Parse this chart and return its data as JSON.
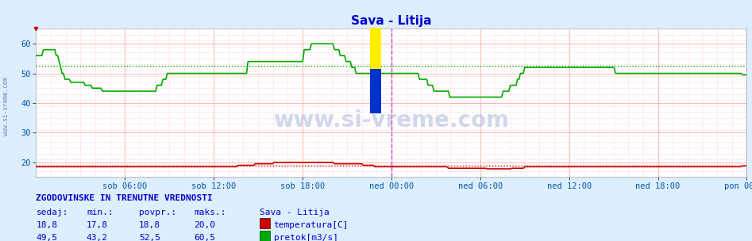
{
  "title": "Sava - Litija",
  "title_color": "#0000cc",
  "bg_color": "#ddeeff",
  "plot_bg_color": "#ffffff",
  "grid_color_major": "#ffaaaa",
  "grid_color_minor": "#ffdddd",
  "ylim": [
    15,
    65
  ],
  "yticks": [
    20,
    30,
    40,
    50,
    60
  ],
  "xlabel_color": "#0055aa",
  "watermark_text": "www.si-vreme.com",
  "sidebar_text": "www.si-vreme.com",
  "sidebar_color": "#6688bb",
  "temp_color": "#cc0000",
  "temp_avg_value": 18.8,
  "flow_color": "#00aa00",
  "flow_avg_value": 52.5,
  "vline_color": "#cc44cc",
  "tick_labels": [
    "sob 06:00",
    "sob 12:00",
    "sob 18:00",
    "ned 00:00",
    "ned 06:00",
    "ned 12:00",
    "ned 18:00",
    "pon 00:00"
  ],
  "tick_positions": [
    0.125,
    0.25,
    0.375,
    0.5,
    0.625,
    0.75,
    0.875,
    1.0
  ],
  "footer_title": "ZGODOVINSKE IN TRENUTNE VREDNOSTI",
  "footer_color": "#0000cc",
  "footer_headers": [
    "sedaj:",
    "min.:",
    "povpr.:",
    "maks.:",
    "Sava - Litija"
  ],
  "footer_row1": [
    "18,8",
    "17,8",
    "18,8",
    "20,0"
  ],
  "footer_row2": [
    "49,5",
    "43,2",
    "52,5",
    "60,5"
  ],
  "footer_label1": "temperatura[C]",
  "footer_label2": "pretok[m3/s]",
  "flow_data": [
    56,
    56,
    56,
    56,
    56,
    58,
    58,
    58,
    58,
    58,
    58,
    58,
    58,
    58,
    56,
    56,
    54,
    52,
    50,
    50,
    48,
    48,
    48,
    48,
    47,
    47,
    47,
    47,
    47,
    47,
    47,
    47,
    47,
    47,
    46,
    46,
    46,
    46,
    46,
    45,
    45,
    45,
    45,
    45,
    45,
    45,
    44,
    44,
    44,
    44,
    44,
    44,
    44,
    44,
    44,
    44,
    44,
    44,
    44,
    44,
    44,
    44,
    44,
    44,
    44,
    44,
    44,
    44,
    44,
    44,
    44,
    44,
    44,
    44,
    44,
    44,
    44,
    44,
    44,
    44,
    44,
    44,
    44,
    44,
    46,
    46,
    46,
    46,
    48,
    48,
    48,
    50,
    50,
    50,
    50,
    50,
    50,
    50,
    50,
    50,
    50,
    50,
    50,
    50,
    50,
    50,
    50,
    50,
    50,
    50,
    50,
    50,
    50,
    50,
    50,
    50,
    50,
    50,
    50,
    50,
    50,
    50,
    50,
    50,
    50,
    50,
    50,
    50,
    50,
    50,
    50,
    50,
    50,
    50,
    50,
    50,
    50,
    50,
    50,
    50,
    50,
    50,
    50,
    50,
    50,
    50,
    50,
    54,
    54,
    54,
    54,
    54,
    54,
    54,
    54,
    54,
    54,
    54,
    54,
    54,
    54,
    54,
    54,
    54,
    54,
    54,
    54,
    54,
    54,
    54,
    54,
    54,
    54,
    54,
    54,
    54,
    54,
    54,
    54,
    54,
    54,
    54,
    54,
    54,
    54,
    54,
    58,
    58,
    58,
    58,
    58,
    60,
    60,
    60,
    60,
    60,
    60,
    60,
    60,
    60,
    60,
    60,
    60,
    60,
    60,
    60,
    60,
    58,
    58,
    58,
    58,
    56,
    56,
    56,
    56,
    54,
    54,
    54,
    54,
    52,
    52,
    52,
    50,
    50,
    50,
    50,
    50,
    50,
    50,
    50,
    50,
    50,
    50,
    50,
    50,
    50,
    50,
    50,
    50,
    50,
    50,
    50,
    50,
    50,
    50,
    50,
    50,
    50,
    50,
    50,
    50,
    50,
    50,
    50,
    50,
    50,
    50,
    50,
    50,
    50,
    50,
    50,
    50,
    50,
    50,
    50,
    48,
    48,
    48,
    48,
    48,
    48,
    46,
    46,
    46,
    46,
    44,
    44,
    44,
    44,
    44,
    44,
    44,
    44,
    44,
    44,
    44,
    42,
    42,
    42,
    42,
    42,
    42,
    42,
    42,
    42,
    42,
    42,
    42,
    42,
    42,
    42,
    42,
    42,
    42,
    42,
    42,
    42,
    42,
    42,
    42,
    42,
    42,
    42,
    42,
    42,
    42,
    42,
    42,
    42,
    42,
    42,
    42,
    42,
    44,
    44,
    44,
    44,
    44,
    46,
    46,
    46,
    46,
    46,
    48,
    48,
    50,
    50,
    50,
    52,
    52,
    52,
    52,
    52,
    52,
    52,
    52,
    52,
    52,
    52,
    52,
    52,
    52,
    52,
    52,
    52,
    52,
    52,
    52,
    52,
    52,
    52,
    52,
    52,
    52,
    52,
    52,
    52,
    52,
    52,
    52,
    52,
    52,
    52,
    52,
    52,
    52,
    52,
    52,
    52,
    52,
    52,
    52,
    52,
    52,
    52,
    52,
    52,
    52,
    52,
    52,
    52,
    52,
    52,
    52,
    52,
    52,
    52,
    52,
    52,
    52,
    52,
    50,
    50,
    50,
    50,
    50,
    50,
    50,
    50,
    50,
    50,
    50,
    50,
    50,
    50,
    50,
    50,
    50,
    50,
    50,
    50,
    50,
    50,
    50,
    50,
    50,
    50,
    50,
    50,
    50,
    50,
    50,
    50,
    50,
    50,
    50,
    50,
    50,
    50,
    50,
    50,
    50,
    50,
    50,
    50,
    50,
    50,
    50,
    50,
    50,
    50,
    50,
    50,
    50,
    50,
    50,
    50,
    50,
    50,
    50,
    50,
    50,
    50,
    50,
    50,
    50,
    50,
    50,
    50,
    50,
    50,
    50,
    50,
    50,
    50,
    50,
    50,
    50,
    50,
    50,
    50,
    50,
    50,
    50,
    50,
    50,
    50,
    50,
    50,
    49.5,
    49.5,
    49.5,
    49.5
  ],
  "temp_data": [
    18.5,
    18.5,
    18.5,
    18.5,
    18.5,
    18.5,
    18.5,
    18.5,
    18.5,
    18.5,
    18.5,
    18.5,
    18.5,
    18.5,
    18.5,
    18.5,
    18.5,
    18.5,
    18.5,
    18.5,
    18.5,
    18.5,
    18.5,
    18.5,
    18.5,
    18.5,
    18.5,
    18.5,
    18.5,
    18.5,
    18.5,
    18.5,
    18.5,
    18.5,
    18.5,
    18.5,
    18.5,
    18.5,
    18.5,
    18.5,
    18.5,
    18.5,
    18.5,
    18.5,
    18.5,
    18.5,
    18.5,
    18.5,
    18.5,
    18.5,
    18.5,
    18.5,
    18.5,
    18.5,
    18.5,
    18.5,
    18.5,
    18.5,
    18.5,
    18.5,
    18.5,
    18.5,
    18.5,
    18.5,
    18.5,
    18.5,
    18.5,
    18.5,
    18.5,
    18.5,
    18.5,
    18.5,
    18.5,
    18.5,
    18.5,
    18.5,
    18.5,
    18.5,
    18.5,
    18.5,
    18.5,
    18.5,
    18.5,
    18.5,
    18.5,
    18.5,
    18.5,
    18.5,
    18.5,
    18.5,
    18.5,
    18.5,
    18.5,
    18.5,
    18.5,
    18.5,
    18.5,
    18.5,
    18.5,
    18.5,
    18.5,
    18.5,
    18.5,
    18.5,
    18.5,
    18.5,
    18.5,
    18.5,
    18.5,
    18.5,
    18.5,
    18.5,
    18.5,
    18.5,
    18.5,
    18.5,
    18.5,
    18.5,
    18.5,
    18.5,
    18.5,
    18.5,
    18.5,
    18.5,
    18.5,
    18.5,
    18.5,
    18.5,
    18.5,
    18.5,
    18.5,
    18.5,
    18.5,
    18.5,
    18.5,
    18.5,
    18.5,
    18.5,
    18.5,
    18.5,
    19.0,
    19.0,
    19.0,
    19.0,
    19.0,
    19.0,
    19.0,
    19.0,
    19.0,
    19.0,
    19.0,
    19.0,
    19.5,
    19.5,
    19.5,
    19.5,
    19.5,
    19.5,
    19.5,
    19.5,
    19.5,
    19.5,
    19.5,
    19.5,
    19.5,
    20.0,
    20.0,
    20.0,
    20.0,
    20.0,
    20.0,
    20.0,
    20.0,
    20.0,
    20.0,
    20.0,
    20.0,
    20.0,
    20.0,
    20.0,
    20.0,
    20.0,
    20.0,
    20.0,
    20.0,
    20.0,
    20.0,
    20.0,
    20.0,
    20.0,
    20.0,
    20.0,
    20.0,
    20.0,
    20.0,
    20.0,
    20.0,
    20.0,
    20.0,
    20.0,
    20.0,
    20.0,
    20.0,
    20.0,
    20.0,
    20.0,
    20.0,
    19.5,
    19.5,
    19.5,
    19.5,
    19.5,
    19.5,
    19.5,
    19.5,
    19.5,
    19.5,
    19.5,
    19.5,
    19.5,
    19.5,
    19.5,
    19.5,
    19.5,
    19.5,
    19.5,
    19.5,
    19.0,
    19.0,
    19.0,
    19.0,
    19.0,
    19.0,
    19.0,
    19.0,
    18.5,
    18.5,
    18.5,
    18.5,
    18.5,
    18.5,
    18.5,
    18.5,
    18.5,
    18.5,
    18.5,
    18.5,
    18.5,
    18.5,
    18.5,
    18.5,
    18.5,
    18.5,
    18.5,
    18.5,
    18.5,
    18.5,
    18.5,
    18.5,
    18.5,
    18.5,
    18.5,
    18.5,
    18.5,
    18.5,
    18.5,
    18.5,
    18.5,
    18.5,
    18.5,
    18.5,
    18.5,
    18.5,
    18.5,
    18.5,
    18.5,
    18.5,
    18.5,
    18.5,
    18.5,
    18.5,
    18.5,
    18.5,
    18.5,
    18.5,
    18.5,
    18.0,
    18.0,
    18.0,
    18.0,
    18.0,
    18.0,
    18.0,
    18.0,
    18.0,
    18.0,
    18.0,
    18.0,
    18.0,
    18.0,
    18.0,
    18.0,
    18.0,
    18.0,
    18.0,
    18.0,
    18.0,
    18.0,
    18.0,
    18.0,
    18.0,
    18.0,
    18.0,
    17.8,
    17.8,
    17.8,
    17.8,
    17.8,
    17.8,
    17.8,
    17.8,
    17.8,
    17.8,
    17.8,
    17.8,
    17.8,
    17.8,
    17.8,
    17.8,
    17.8,
    18.0,
    18.0,
    18.0,
    18.0,
    18.0,
    18.0,
    18.0,
    18.0,
    18.0,
    18.5,
    18.5,
    18.5,
    18.5,
    18.5,
    18.5,
    18.5,
    18.5,
    18.5,
    18.5,
    18.5,
    18.5,
    18.5,
    18.5,
    18.5,
    18.5,
    18.5,
    18.5,
    18.5,
    18.5,
    18.5,
    18.5,
    18.5,
    18.5,
    18.5,
    18.5,
    18.5,
    18.5,
    18.5,
    18.5,
    18.5,
    18.5,
    18.5,
    18.5,
    18.5,
    18.5,
    18.5,
    18.5,
    18.5,
    18.5,
    18.5,
    18.5,
    18.5,
    18.5,
    18.5,
    18.5,
    18.5,
    18.5,
    18.5,
    18.5,
    18.5,
    18.5,
    18.5,
    18.5,
    18.5,
    18.5,
    18.5,
    18.5,
    18.5,
    18.5,
    18.5,
    18.5,
    18.5,
    18.5,
    18.5,
    18.5,
    18.5,
    18.5,
    18.5,
    18.5,
    18.5,
    18.5,
    18.5,
    18.5,
    18.5,
    18.5,
    18.5,
    18.5,
    18.5,
    18.5,
    18.5,
    18.5,
    18.5,
    18.5,
    18.5,
    18.5,
    18.5,
    18.5,
    18.5,
    18.5,
    18.5,
    18.5,
    18.5,
    18.5,
    18.5,
    18.5,
    18.5,
    18.5,
    18.5,
    18.5,
    18.5,
    18.5,
    18.5,
    18.5,
    18.5,
    18.5,
    18.5,
    18.5,
    18.5,
    18.5,
    18.5,
    18.5,
    18.5,
    18.5,
    18.5,
    18.5,
    18.5,
    18.5,
    18.5,
    18.5,
    18.5,
    18.5,
    18.5,
    18.5,
    18.5,
    18.5,
    18.5,
    18.5,
    18.5,
    18.5,
    18.5,
    18.5,
    18.5,
    18.5,
    18.5,
    18.5,
    18.5,
    18.5,
    18.5,
    18.5,
    18.5,
    18.5,
    18.5,
    18.5,
    18.5,
    18.5,
    18.5,
    18.5,
    18.5,
    18.5,
    18.5,
    18.8,
    18.8,
    18.8,
    18.8
  ]
}
